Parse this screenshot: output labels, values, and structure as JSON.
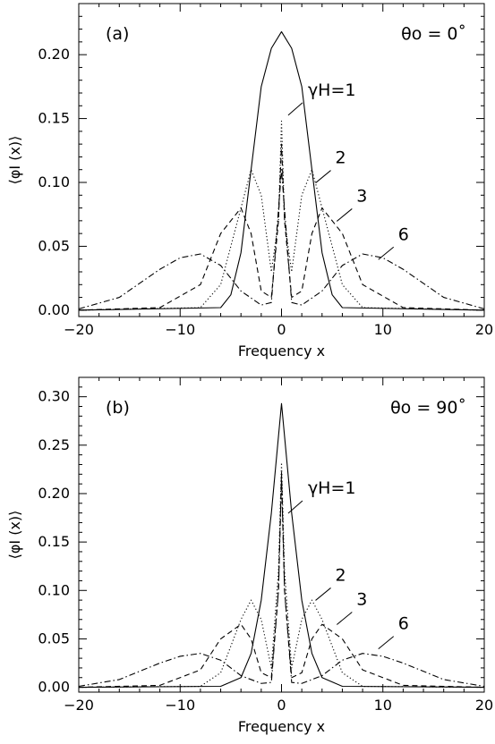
{
  "chart_data": [
    {
      "type": "line",
      "panel_label": "(a)",
      "annotation": "θo = 0˚",
      "xlabel": "Frequency x",
      "ylabel": "⟨φI (x)⟩",
      "xlim": [
        -20,
        20
      ],
      "ylim": [
        -0.005,
        0.24
      ],
      "xticks": [
        -20,
        -10,
        0,
        10,
        20
      ],
      "xtick_labels": [
        "−20",
        "−10",
        "0",
        "10",
        "20"
      ],
      "yticks": [
        0.0,
        0.05,
        0.1,
        0.15,
        0.2
      ],
      "ytick_labels": [
        "0.00",
        "0.05",
        "0.10",
        "0.15",
        "0.20"
      ],
      "grid": false,
      "series": [
        {
          "name": "γH=1",
          "style": "solid",
          "x": [
            -20,
            -6,
            -5,
            -4,
            -3,
            -2,
            -1,
            0,
            1,
            2,
            3,
            4,
            5,
            6,
            20
          ],
          "y": [
            0,
            0.002,
            0.012,
            0.045,
            0.11,
            0.175,
            0.205,
            0.218,
            0.205,
            0.175,
            0.11,
            0.045,
            0.012,
            0.002,
            0
          ]
        },
        {
          "name": "2",
          "style": "dotted",
          "x": [
            -20,
            -8,
            -6,
            -4,
            -3,
            -2,
            -1,
            -0.3,
            0,
            0.3,
            1,
            2,
            3,
            4,
            6,
            8,
            20
          ],
          "y": [
            0,
            0.002,
            0.02,
            0.08,
            0.11,
            0.09,
            0.03,
            0.07,
            0.148,
            0.07,
            0.03,
            0.09,
            0.11,
            0.08,
            0.02,
            0.002,
            0
          ]
        },
        {
          "name": "3",
          "style": "dashed",
          "x": [
            -20,
            -12,
            -8,
            -6,
            -4,
            -3,
            -2,
            -1,
            -0.3,
            0,
            0.3,
            1,
            2,
            3,
            4,
            6,
            8,
            12,
            20
          ],
          "y": [
            0,
            0.002,
            0.02,
            0.06,
            0.08,
            0.06,
            0.015,
            0.01,
            0.07,
            0.13,
            0.07,
            0.01,
            0.015,
            0.06,
            0.08,
            0.06,
            0.02,
            0.002,
            0
          ]
        },
        {
          "name": "6",
          "style": "dashdot",
          "x": [
            -20,
            -16,
            -12,
            -10,
            -8,
            -6,
            -4,
            -2,
            -1,
            0,
            1,
            2,
            4,
            6,
            8,
            10,
            12,
            16,
            20
          ],
          "y": [
            0.001,
            0.01,
            0.032,
            0.041,
            0.044,
            0.035,
            0.015,
            0.004,
            0.006,
            0.11,
            0.006,
            0.004,
            0.015,
            0.035,
            0.044,
            0.041,
            0.032,
            0.01,
            0.001
          ]
        }
      ],
      "curve_labels": [
        {
          "text": "γH=1",
          "x": 2.6,
          "y": 0.168
        },
        {
          "text": "2",
          "x": 5.3,
          "y": 0.115
        },
        {
          "text": "3",
          "x": 7.4,
          "y": 0.085
        },
        {
          "text": "6",
          "x": 11.5,
          "y": 0.055
        }
      ]
    },
    {
      "type": "line",
      "panel_label": "(b)",
      "annotation": "θo = 90˚",
      "xlabel": "Frequency x",
      "ylabel": "⟨φI (x)⟩",
      "xlim": [
        -20,
        20
      ],
      "ylim": [
        -0.005,
        0.32
      ],
      "xticks": [
        -20,
        -10,
        0,
        10,
        20
      ],
      "xtick_labels": [
        "−20",
        "−10",
        "0",
        "10",
        "20"
      ],
      "yticks": [
        0.0,
        0.05,
        0.1,
        0.15,
        0.2,
        0.25,
        0.3
      ],
      "ytick_labels": [
        "0.00",
        "0.05",
        "0.10",
        "0.15",
        "0.20",
        "0.25",
        "0.30"
      ],
      "grid": false,
      "series": [
        {
          "name": "γH=1",
          "style": "solid",
          "x": [
            -20,
            -6,
            -4,
            -3,
            -2,
            -1,
            0,
            1,
            2,
            3,
            4,
            6,
            20
          ],
          "y": [
            0,
            0.001,
            0.01,
            0.035,
            0.09,
            0.18,
            0.293,
            0.18,
            0.09,
            0.035,
            0.01,
            0.001,
            0
          ]
        },
        {
          "name": "2",
          "style": "dotted",
          "x": [
            -20,
            -8,
            -6,
            -4,
            -3,
            -2,
            -1,
            -0.3,
            0,
            0.3,
            1,
            2,
            3,
            4,
            6,
            8,
            20
          ],
          "y": [
            0,
            0.001,
            0.015,
            0.07,
            0.09,
            0.07,
            0.02,
            0.12,
            0.232,
            0.12,
            0.02,
            0.07,
            0.09,
            0.07,
            0.015,
            0.001,
            0
          ]
        },
        {
          "name": "3",
          "style": "dashed",
          "x": [
            -20,
            -12,
            -8,
            -6,
            -4,
            -3,
            -2,
            -1,
            -0.3,
            0,
            0.3,
            1,
            2,
            3,
            4,
            6,
            8,
            12,
            20
          ],
          "y": [
            0,
            0.002,
            0.018,
            0.05,
            0.065,
            0.05,
            0.015,
            0.01,
            0.1,
            0.222,
            0.1,
            0.01,
            0.015,
            0.05,
            0.065,
            0.05,
            0.018,
            0.002,
            0
          ]
        },
        {
          "name": "6",
          "style": "dashdot",
          "x": [
            -20,
            -16,
            -12,
            -10,
            -8,
            -6,
            -4,
            -2,
            -1,
            -0.3,
            0,
            0.3,
            1,
            2,
            4,
            6,
            8,
            10,
            12,
            16,
            20
          ],
          "y": [
            0.001,
            0.008,
            0.025,
            0.032,
            0.035,
            0.028,
            0.012,
            0.004,
            0.005,
            0.1,
            0.215,
            0.1,
            0.005,
            0.004,
            0.012,
            0.028,
            0.035,
            0.032,
            0.025,
            0.008,
            0.001
          ]
        }
      ],
      "curve_labels": [
        {
          "text": "γH=1",
          "x": 2.6,
          "y": 0.2
        },
        {
          "text": "2",
          "x": 5.3,
          "y": 0.11
        },
        {
          "text": "3",
          "x": 7.4,
          "y": 0.085
        },
        {
          "text": "6",
          "x": 11.5,
          "y": 0.06
        }
      ]
    }
  ]
}
